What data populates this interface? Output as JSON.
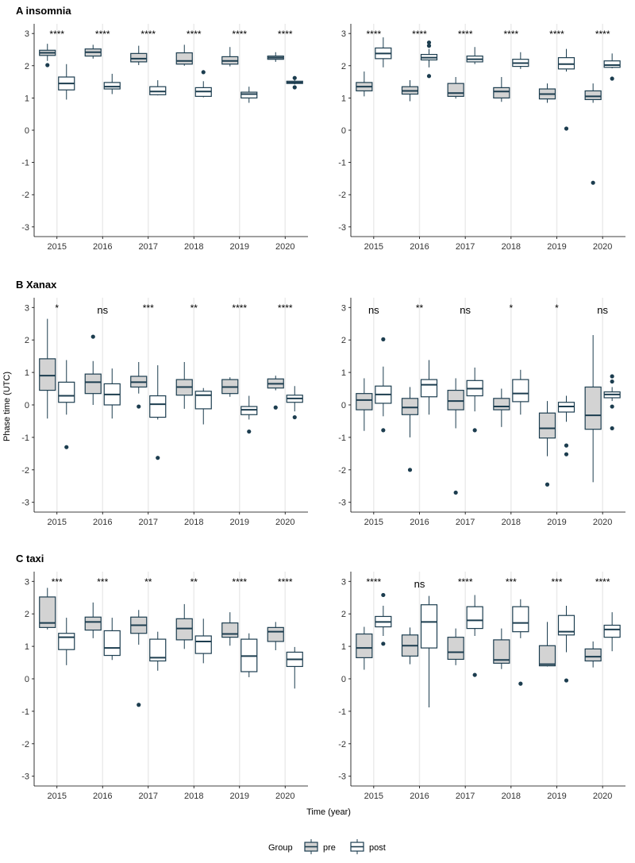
{
  "colors": {
    "pre_fill": "#d3d3d3",
    "post_fill": "#ffffff",
    "stroke": "#1c3d4f",
    "grid": "#ebebeb",
    "axis": "#000000"
  },
  "axis": {
    "ylabel": "Phase time (UTC)",
    "xlabel": "Time (year)",
    "ylim": [
      -3.3,
      3.3
    ],
    "yticks": [
      "3",
      "2",
      "1",
      "0",
      "-1",
      "-2",
      "-3"
    ]
  },
  "legend": {
    "title": "Group",
    "items": [
      {
        "label": "pre",
        "key": "pre"
      },
      {
        "label": "post",
        "key": "post"
      }
    ]
  },
  "chart_data": [
    {
      "type": "box",
      "title": "A insomnia",
      "row": 0,
      "col": 0,
      "categories": [
        "2015",
        "2016",
        "2017",
        "2018",
        "2019",
        "2020"
      ],
      "significance": [
        "****",
        "****",
        "****",
        "****",
        "****",
        "****"
      ],
      "series": [
        {
          "name": "pre",
          "boxes": [
            {
              "low": 2.15,
              "q1": 2.32,
              "median": 2.4,
              "q3": 2.48,
              "high": 2.68,
              "outliers": [
                2.02
              ]
            },
            {
              "low": 2.22,
              "q1": 2.3,
              "median": 2.42,
              "q3": 2.52,
              "high": 2.65,
              "outliers": []
            },
            {
              "low": 2.02,
              "q1": 2.12,
              "median": 2.22,
              "q3": 2.38,
              "high": 2.62,
              "outliers": []
            },
            {
              "low": 2.0,
              "q1": 2.05,
              "median": 2.15,
              "q3": 2.4,
              "high": 2.65,
              "outliers": []
            },
            {
              "low": 1.98,
              "q1": 2.05,
              "median": 2.15,
              "q3": 2.28,
              "high": 2.58,
              "outliers": []
            },
            {
              "low": 2.12,
              "q1": 2.2,
              "median": 2.25,
              "q3": 2.3,
              "high": 2.42,
              "outliers": []
            }
          ]
        },
        {
          "name": "post",
          "boxes": [
            {
              "low": 0.95,
              "q1": 1.25,
              "median": 1.45,
              "q3": 1.65,
              "high": 2.05,
              "outliers": []
            },
            {
              "low": 1.12,
              "q1": 1.28,
              "median": 1.35,
              "q3": 1.48,
              "high": 1.75,
              "outliers": []
            },
            {
              "low": 1.08,
              "q1": 1.1,
              "median": 1.2,
              "q3": 1.35,
              "high": 1.55,
              "outliers": []
            },
            {
              "low": 1.02,
              "q1": 1.05,
              "median": 1.2,
              "q3": 1.32,
              "high": 1.52,
              "outliers": [
                1.8
              ]
            },
            {
              "low": 0.85,
              "q1": 1.0,
              "median": 1.12,
              "q3": 1.18,
              "high": 1.35,
              "outliers": []
            },
            {
              "low": 1.42,
              "q1": 1.45,
              "median": 1.48,
              "q3": 1.52,
              "high": 1.56,
              "outliers": [
                1.62,
                1.33
              ]
            }
          ]
        }
      ]
    },
    {
      "type": "box",
      "title": "",
      "row": 0,
      "col": 1,
      "categories": [
        "2015",
        "2016",
        "2017",
        "2018",
        "2019",
        "2020"
      ],
      "significance": [
        "****",
        "****",
        "****",
        "****",
        "****",
        "****"
      ],
      "series": [
        {
          "name": "pre",
          "boxes": [
            {
              "low": 1.05,
              "q1": 1.22,
              "median": 1.35,
              "q3": 1.48,
              "high": 1.82,
              "outliers": []
            },
            {
              "low": 0.9,
              "q1": 1.12,
              "median": 1.22,
              "q3": 1.35,
              "high": 1.55,
              "outliers": []
            },
            {
              "low": 0.98,
              "q1": 1.05,
              "median": 1.15,
              "q3": 1.45,
              "high": 1.65,
              "outliers": []
            },
            {
              "low": 0.88,
              "q1": 1.0,
              "median": 1.2,
              "q3": 1.32,
              "high": 1.65,
              "outliers": []
            },
            {
              "low": 0.85,
              "q1": 0.97,
              "median": 1.12,
              "q3": 1.28,
              "high": 1.45,
              "outliers": []
            },
            {
              "low": 0.85,
              "q1": 0.95,
              "median": 1.05,
              "q3": 1.22,
              "high": 1.45,
              "outliers": [
                -1.63
              ]
            }
          ]
        },
        {
          "name": "post",
          "boxes": [
            {
              "low": 1.95,
              "q1": 2.22,
              "median": 2.38,
              "q3": 2.55,
              "high": 2.88,
              "outliers": []
            },
            {
              "low": 1.95,
              "q1": 2.18,
              "median": 2.25,
              "q3": 2.35,
              "high": 2.52,
              "outliers": [
                2.72,
                2.62,
                1.68
              ]
            },
            {
              "low": 2.05,
              "q1": 2.12,
              "median": 2.2,
              "q3": 2.3,
              "high": 2.58,
              "outliers": []
            },
            {
              "low": 1.9,
              "q1": 1.98,
              "median": 2.08,
              "q3": 2.2,
              "high": 2.42,
              "outliers": []
            },
            {
              "low": 1.82,
              "q1": 1.9,
              "median": 2.05,
              "q3": 2.25,
              "high": 2.52,
              "outliers": [
                0.05
              ]
            },
            {
              "low": 1.92,
              "q1": 1.95,
              "median": 2.02,
              "q3": 2.15,
              "high": 2.38,
              "outliers": [
                1.6
              ]
            }
          ]
        }
      ]
    },
    {
      "type": "box",
      "title": "B Xanax",
      "row": 1,
      "col": 0,
      "categories": [
        "2015",
        "2016",
        "2017",
        "2018",
        "2019",
        "2020"
      ],
      "significance": [
        "*",
        "ns",
        "***",
        "**",
        "****",
        "****"
      ],
      "series": [
        {
          "name": "pre",
          "boxes": [
            {
              "low": -0.42,
              "q1": 0.45,
              "median": 0.9,
              "q3": 1.42,
              "high": 2.65,
              "outliers": []
            },
            {
              "low": 0.0,
              "q1": 0.35,
              "median": 0.7,
              "q3": 0.95,
              "high": 1.35,
              "outliers": [
                2.1
              ]
            },
            {
              "low": 0.35,
              "q1": 0.55,
              "median": 0.7,
              "q3": 0.88,
              "high": 1.32,
              "outliers": [
                -0.05
              ]
            },
            {
              "low": -0.12,
              "q1": 0.3,
              "median": 0.55,
              "q3": 0.78,
              "high": 1.32,
              "outliers": []
            },
            {
              "low": 0.25,
              "q1": 0.35,
              "median": 0.55,
              "q3": 0.78,
              "high": 0.85,
              "outliers": []
            },
            {
              "low": 0.45,
              "q1": 0.52,
              "median": 0.65,
              "q3": 0.8,
              "high": 0.9,
              "outliers": [
                -0.08
              ]
            }
          ]
        },
        {
          "name": "post",
          "boxes": [
            {
              "low": -0.3,
              "q1": 0.08,
              "median": 0.28,
              "q3": 0.7,
              "high": 1.38,
              "outliers": [
                -1.3
              ]
            },
            {
              "low": -0.42,
              "q1": 0.0,
              "median": 0.32,
              "q3": 0.65,
              "high": 1.12,
              "outliers": []
            },
            {
              "low": -0.45,
              "q1": -0.38,
              "median": 0.02,
              "q3": 0.28,
              "high": 1.22,
              "outliers": [
                -1.63
              ]
            },
            {
              "low": -0.6,
              "q1": -0.12,
              "median": 0.3,
              "q3": 0.42,
              "high": 0.52,
              "outliers": []
            },
            {
              "low": -0.45,
              "q1": -0.3,
              "median": -0.15,
              "q3": -0.05,
              "high": 0.28,
              "outliers": [
                -0.82
              ]
            },
            {
              "low": -0.2,
              "q1": 0.08,
              "median": 0.2,
              "q3": 0.3,
              "high": 0.58,
              "outliers": [
                -0.38
              ]
            }
          ]
        }
      ]
    },
    {
      "type": "box",
      "title": "",
      "row": 1,
      "col": 1,
      "categories": [
        "2015",
        "2016",
        "2017",
        "2018",
        "2019",
        "2020"
      ],
      "significance": [
        "ns",
        "**",
        "ns",
        "*",
        "*",
        "ns"
      ],
      "series": [
        {
          "name": "pre",
          "boxes": [
            {
              "low": -0.8,
              "q1": -0.15,
              "median": 0.15,
              "q3": 0.35,
              "high": 0.82,
              "outliers": []
            },
            {
              "low": -1.0,
              "q1": -0.3,
              "median": -0.08,
              "q3": 0.2,
              "high": 0.55,
              "outliers": [
                -2.0
              ]
            },
            {
              "low": -0.72,
              "q1": -0.15,
              "median": 0.12,
              "q3": 0.45,
              "high": 0.82,
              "outliers": [
                -2.7
              ]
            },
            {
              "low": -0.68,
              "q1": -0.15,
              "median": -0.05,
              "q3": 0.2,
              "high": 0.5,
              "outliers": []
            },
            {
              "low": -1.58,
              "q1": -1.02,
              "median": -0.72,
              "q3": -0.25,
              "high": 0.12,
              "outliers": [
                -2.45
              ]
            },
            {
              "low": -2.38,
              "q1": -0.75,
              "median": -0.32,
              "q3": 0.55,
              "high": 2.15,
              "outliers": []
            }
          ]
        },
        {
          "name": "post",
          "boxes": [
            {
              "low": -0.35,
              "q1": 0.05,
              "median": 0.32,
              "q3": 0.58,
              "high": 1.18,
              "outliers": [
                2.02,
                -0.78
              ]
            },
            {
              "low": -0.3,
              "q1": 0.25,
              "median": 0.62,
              "q3": 0.78,
              "high": 1.38,
              "outliers": []
            },
            {
              "low": -0.2,
              "q1": 0.28,
              "median": 0.5,
              "q3": 0.75,
              "high": 1.15,
              "outliers": [
                -0.78
              ]
            },
            {
              "low": -0.3,
              "q1": 0.1,
              "median": 0.35,
              "q3": 0.78,
              "high": 1.08,
              "outliers": []
            },
            {
              "low": -0.52,
              "q1": -0.22,
              "median": -0.05,
              "q3": 0.08,
              "high": 0.28,
              "outliers": [
                -1.25,
                -1.52
              ]
            },
            {
              "low": 0.12,
              "q1": 0.22,
              "median": 0.32,
              "q3": 0.4,
              "high": 0.55,
              "outliers": [
                0.88,
                0.72,
                -0.05,
                -0.72
              ]
            }
          ]
        }
      ]
    },
    {
      "type": "box",
      "title": "C taxi",
      "row": 2,
      "col": 0,
      "categories": [
        "2015",
        "2016",
        "2017",
        "2018",
        "2019",
        "2020"
      ],
      "significance": [
        "***",
        "***",
        "**",
        "**",
        "****",
        "****"
      ],
      "series": [
        {
          "name": "pre",
          "boxes": [
            {
              "low": 1.52,
              "q1": 1.58,
              "median": 1.72,
              "q3": 2.52,
              "high": 2.8,
              "outliers": []
            },
            {
              "low": 1.25,
              "q1": 1.5,
              "median": 1.75,
              "q3": 1.9,
              "high": 2.35,
              "outliers": []
            },
            {
              "low": 1.05,
              "q1": 1.4,
              "median": 1.65,
              "q3": 1.9,
              "high": 2.12,
              "outliers": [
                -0.8
              ]
            },
            {
              "low": 0.92,
              "q1": 1.2,
              "median": 1.55,
              "q3": 1.85,
              "high": 2.3,
              "outliers": []
            },
            {
              "low": 1.02,
              "q1": 1.28,
              "median": 1.38,
              "q3": 1.72,
              "high": 2.05,
              "outliers": []
            },
            {
              "low": 0.88,
              "q1": 1.15,
              "median": 1.45,
              "q3": 1.58,
              "high": 1.75,
              "outliers": []
            }
          ]
        },
        {
          "name": "post",
          "boxes": [
            {
              "low": 0.42,
              "q1": 0.9,
              "median": 1.28,
              "q3": 1.4,
              "high": 1.88,
              "outliers": []
            },
            {
              "low": 0.58,
              "q1": 0.72,
              "median": 0.95,
              "q3": 1.48,
              "high": 1.88,
              "outliers": []
            },
            {
              "low": 0.25,
              "q1": 0.55,
              "median": 0.65,
              "q3": 1.22,
              "high": 1.45,
              "outliers": []
            },
            {
              "low": 0.48,
              "q1": 0.78,
              "median": 1.15,
              "q3": 1.32,
              "high": 1.85,
              "outliers": []
            },
            {
              "low": 0.05,
              "q1": 0.22,
              "median": 0.7,
              "q3": 1.22,
              "high": 1.4,
              "outliers": []
            },
            {
              "low": -0.3,
              "q1": 0.38,
              "median": 0.6,
              "q3": 0.82,
              "high": 0.98,
              "outliers": []
            }
          ]
        }
      ]
    },
    {
      "type": "box",
      "title": "",
      "row": 2,
      "col": 1,
      "categories": [
        "2015",
        "2016",
        "2017",
        "2018",
        "2019",
        "2020"
      ],
      "significance": [
        "****",
        "ns",
        "****",
        "***",
        "***",
        "****"
      ],
      "series": [
        {
          "name": "pre",
          "boxes": [
            {
              "low": 0.28,
              "q1": 0.65,
              "median": 0.95,
              "q3": 1.38,
              "high": 1.6,
              "outliers": []
            },
            {
              "low": 0.45,
              "q1": 0.7,
              "median": 1.02,
              "q3": 1.35,
              "high": 1.58,
              "outliers": []
            },
            {
              "low": 0.42,
              "q1": 0.6,
              "median": 0.82,
              "q3": 1.28,
              "high": 1.55,
              "outliers": []
            },
            {
              "low": 0.3,
              "q1": 0.48,
              "median": 0.58,
              "q3": 1.2,
              "high": 1.55,
              "outliers": []
            },
            {
              "low": 0.38,
              "q1": 0.4,
              "median": 0.45,
              "q3": 1.02,
              "high": 1.75,
              "outliers": []
            },
            {
              "low": 0.35,
              "q1": 0.55,
              "median": 0.68,
              "q3": 0.92,
              "high": 1.15,
              "outliers": []
            }
          ]
        },
        {
          "name": "post",
          "boxes": [
            {
              "low": 1.32,
              "q1": 1.6,
              "median": 1.75,
              "q3": 1.92,
              "high": 2.25,
              "outliers": [
                2.58,
                1.08
              ]
            },
            {
              "low": -0.88,
              "q1": 0.95,
              "median": 1.75,
              "q3": 2.28,
              "high": 2.55,
              "outliers": []
            },
            {
              "low": 1.32,
              "q1": 1.55,
              "median": 1.8,
              "q3": 2.22,
              "high": 2.58,
              "outliers": [
                0.12
              ]
            },
            {
              "low": 1.25,
              "q1": 1.45,
              "median": 1.72,
              "q3": 2.22,
              "high": 2.45,
              "outliers": [
                -0.15
              ]
            },
            {
              "low": 0.82,
              "q1": 1.35,
              "median": 1.45,
              "q3": 1.95,
              "high": 2.25,
              "outliers": [
                -0.05
              ]
            },
            {
              "low": 0.85,
              "q1": 1.28,
              "median": 1.52,
              "q3": 1.65,
              "high": 2.05,
              "outliers": []
            }
          ]
        }
      ]
    }
  ]
}
